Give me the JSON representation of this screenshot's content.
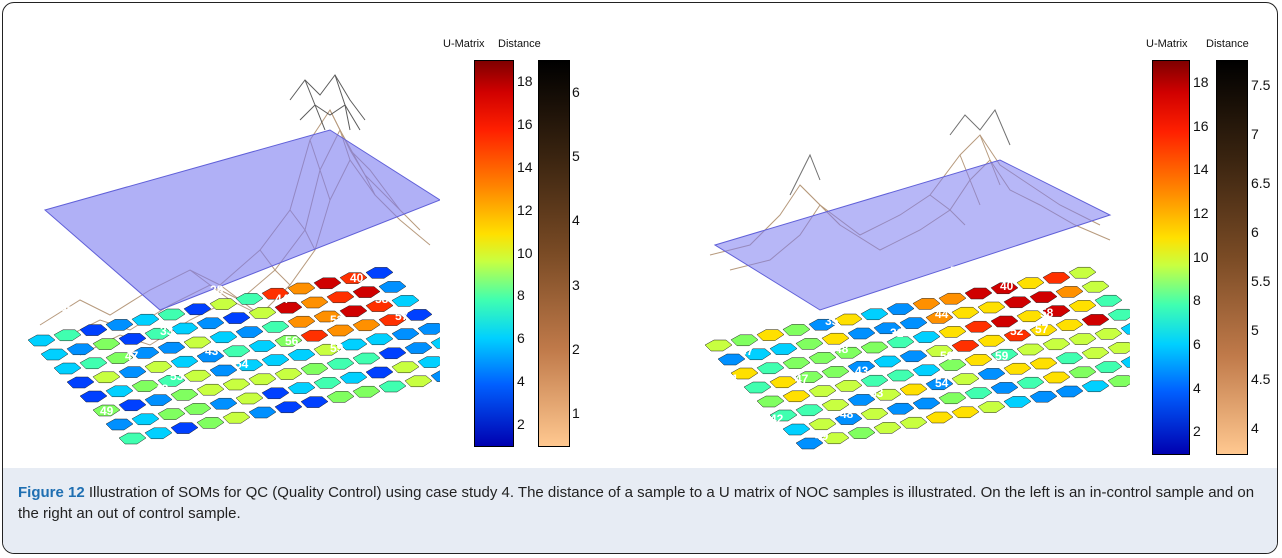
{
  "panels": [
    {
      "id": "left",
      "colorbar_headers": {
        "umatrix": "U-Matrix",
        "distance": "Distance"
      },
      "umatrix_ticks": [
        "18",
        "16",
        "14",
        "12",
        "10",
        "8",
        "6",
        "4",
        "2"
      ],
      "distance_ticks": [
        "6",
        "5",
        "4",
        "3",
        "2",
        "1"
      ],
      "hex_labels": [
        "37",
        "40",
        "28",
        "44",
        "58",
        "52",
        "57",
        "33",
        "41",
        "47",
        "43",
        "56",
        "59",
        "46",
        "53",
        "54",
        "42",
        "48",
        "49"
      ]
    },
    {
      "id": "right",
      "colorbar_headers": {
        "umatrix": "U-Matrix",
        "distance": "Distance"
      },
      "umatrix_ticks": [
        "18",
        "16",
        "14",
        "12",
        "10",
        "8",
        "6",
        "4",
        "2"
      ],
      "distance_ticks": [
        "7.5",
        "7",
        "6.5",
        "6",
        "5.5",
        "5",
        "4.5",
        "4"
      ],
      "hex_labels": [
        "51",
        "40",
        "28",
        "44",
        "58",
        "52",
        "57",
        "35",
        "31",
        "56",
        "37",
        "48",
        "59",
        "43",
        "41",
        "47",
        "53",
        "54",
        "46",
        "42",
        "48",
        "49"
      ]
    }
  ],
  "caption": {
    "label": "Figure 12",
    "text": " Illustration of SOMs for QC (Quality Control) using case study 4. The distance of a sample to a U matrix of NOC samples is illustrated. On the left is an in-control sample and on the right an out of control sample."
  }
}
